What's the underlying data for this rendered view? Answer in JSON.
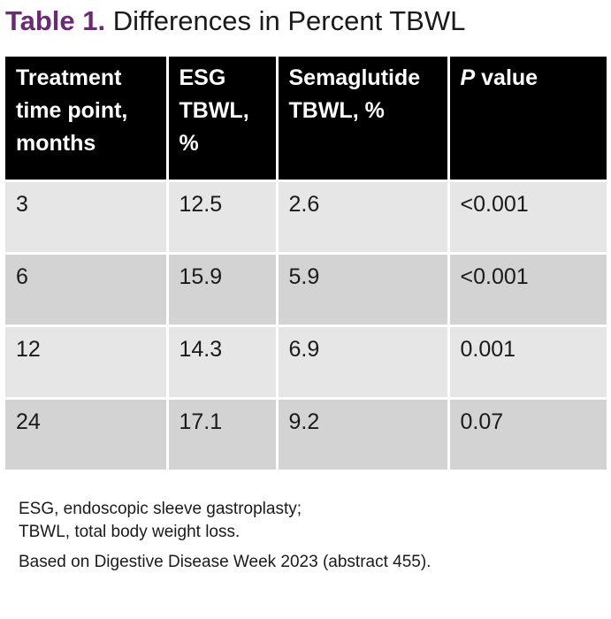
{
  "title": {
    "label": "Table 1.",
    "text": "Differences in Percent TBWL"
  },
  "table": {
    "headers": [
      "Treatment time point, months",
      "ESG TBWL, %",
      "Semaglutide TBWL, %",
      "P value"
    ],
    "header_p_italic": "P",
    "header_p_rest": " value",
    "rows": [
      [
        "3",
        "12.5",
        "2.6",
        "<0.001"
      ],
      [
        "6",
        "15.9",
        "5.9",
        "<0.001"
      ],
      [
        "12",
        "14.3",
        "6.9",
        "0.001"
      ],
      [
        "24",
        "17.1",
        "9.2",
        "0.07"
      ]
    ]
  },
  "footnotes": {
    "line1": "ESG, endoscopic sleeve gastroplasty;",
    "line2": "TBWL, total body weight loss.",
    "source": "Based on Digestive Disease Week 2023 (abstract 455)."
  },
  "colors": {
    "title_label": "#6b2a74",
    "header_bg": "#000000",
    "row_odd_bg": "#e6e6e6",
    "row_even_bg": "#d3d3d3"
  }
}
